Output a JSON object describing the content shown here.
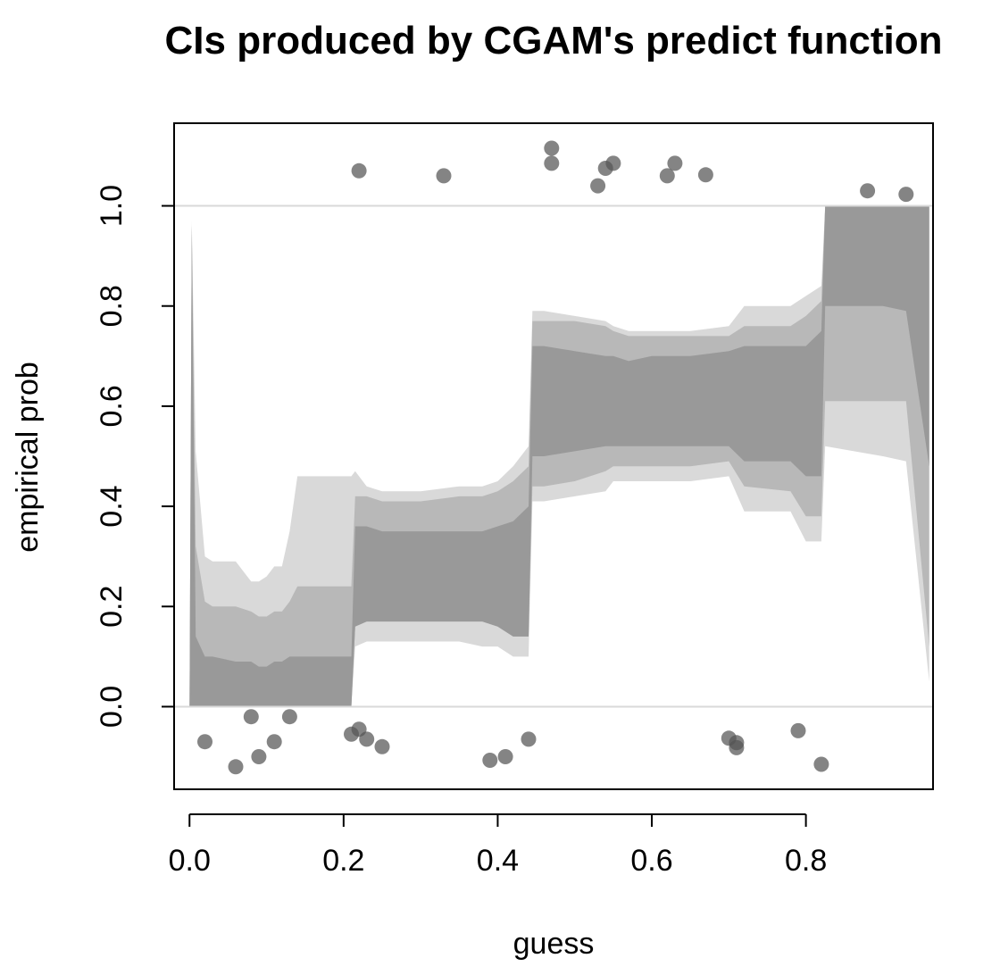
{
  "chart_data": {
    "type": "scatter",
    "title": "CIs produced by CGAM's predict function",
    "xlabel": "guess",
    "ylabel": "empirical prob",
    "xlim": [
      -0.02,
      0.965
    ],
    "ylim": [
      -0.165,
      1.165
    ],
    "xticks": [
      0.0,
      0.2,
      0.4,
      0.6,
      0.8
    ],
    "xtick_labels": [
      "0.0",
      "0.2",
      "0.4",
      "0.6",
      "0.8"
    ],
    "yticks": [
      0.0,
      0.2,
      0.4,
      0.6,
      0.8,
      1.0
    ],
    "ytick_labels": [
      "0.0",
      "0.2",
      "0.4",
      "0.6",
      "0.8",
      "1.0"
    ],
    "reference_lines": [
      0.0,
      1.0
    ],
    "grid": false,
    "colors": {
      "band_outer": "#d9d9d9",
      "band_middle": "#b8b8b8",
      "band_inner": "#999999",
      "points": "#555555",
      "reference": "#d9d9d9"
    },
    "bands": {
      "x": [
        0.0,
        0.003,
        0.008,
        0.02,
        0.03,
        0.06,
        0.08,
        0.09,
        0.1,
        0.11,
        0.12,
        0.13,
        0.14,
        0.21,
        0.215,
        0.23,
        0.25,
        0.3,
        0.35,
        0.38,
        0.4,
        0.42,
        0.44,
        0.445,
        0.46,
        0.5,
        0.54,
        0.55,
        0.57,
        0.6,
        0.65,
        0.7,
        0.72,
        0.78,
        0.8,
        0.82,
        0.825,
        0.9,
        0.93,
        0.96
      ],
      "outer_low": [
        0.0,
        0.0,
        0.0,
        0.0,
        0.0,
        0.0,
        0.0,
        0.0,
        0.0,
        0.0,
        0.0,
        0.0,
        0.0,
        0.0,
        0.12,
        0.13,
        0.13,
        0.13,
        0.13,
        0.12,
        0.12,
        0.1,
        0.1,
        0.41,
        0.41,
        0.42,
        0.43,
        0.45,
        0.45,
        0.45,
        0.45,
        0.46,
        0.39,
        0.39,
        0.33,
        0.33,
        0.52,
        0.5,
        0.49,
        0.05
      ],
      "middle_low": [
        0.0,
        0.0,
        0.0,
        0.0,
        0.0,
        0.0,
        0.0,
        0.0,
        0.0,
        0.0,
        0.0,
        0.0,
        0.0,
        0.0,
        0.16,
        0.17,
        0.17,
        0.17,
        0.17,
        0.17,
        0.16,
        0.14,
        0.14,
        0.44,
        0.44,
        0.45,
        0.47,
        0.48,
        0.48,
        0.48,
        0.48,
        0.49,
        0.44,
        0.43,
        0.38,
        0.38,
        0.61,
        0.61,
        0.61,
        0.12
      ],
      "inner_low": [
        0.0,
        0.0,
        0.0,
        0.0,
        0.0,
        0.0,
        0.0,
        0.0,
        0.0,
        0.0,
        0.0,
        0.0,
        0.0,
        0.0,
        0.16,
        0.17,
        0.17,
        0.17,
        0.17,
        0.17,
        0.16,
        0.14,
        0.14,
        0.5,
        0.5,
        0.51,
        0.52,
        0.52,
        0.52,
        0.52,
        0.52,
        0.52,
        0.49,
        0.49,
        0.46,
        0.46,
        0.8,
        0.8,
        0.79,
        0.48
      ],
      "inner_high": [
        0.0,
        0.96,
        0.14,
        0.1,
        0.1,
        0.09,
        0.09,
        0.08,
        0.08,
        0.09,
        0.09,
        0.1,
        0.1,
        0.1,
        0.36,
        0.36,
        0.35,
        0.35,
        0.35,
        0.35,
        0.36,
        0.37,
        0.4,
        0.72,
        0.72,
        0.71,
        0.7,
        0.7,
        0.69,
        0.7,
        0.7,
        0.71,
        0.72,
        0.72,
        0.72,
        0.75,
        1.0,
        1.0,
        1.0,
        1.0
      ],
      "middle_high": [
        0.0,
        0.96,
        0.32,
        0.21,
        0.2,
        0.2,
        0.19,
        0.18,
        0.18,
        0.19,
        0.19,
        0.21,
        0.24,
        0.24,
        0.42,
        0.42,
        0.41,
        0.41,
        0.42,
        0.42,
        0.43,
        0.45,
        0.48,
        0.77,
        0.77,
        0.77,
        0.76,
        0.75,
        0.74,
        0.74,
        0.74,
        0.74,
        0.76,
        0.76,
        0.78,
        0.81,
        1.0,
        1.0,
        1.0,
        1.0
      ],
      "outer_high": [
        0.0,
        0.97,
        0.51,
        0.3,
        0.29,
        0.29,
        0.25,
        0.25,
        0.26,
        0.28,
        0.28,
        0.35,
        0.46,
        0.46,
        0.47,
        0.44,
        0.43,
        0.43,
        0.44,
        0.44,
        0.45,
        0.48,
        0.52,
        0.79,
        0.79,
        0.78,
        0.77,
        0.76,
        0.75,
        0.75,
        0.75,
        0.76,
        0.8,
        0.8,
        0.82,
        0.84,
        1.0,
        1.0,
        1.0,
        1.0
      ]
    },
    "points": [
      {
        "x": 0.02,
        "y": -0.07
      },
      {
        "x": 0.06,
        "y": -0.12
      },
      {
        "x": 0.08,
        "y": -0.02
      },
      {
        "x": 0.09,
        "y": -0.1
      },
      {
        "x": 0.11,
        "y": -0.07
      },
      {
        "x": 0.13,
        "y": -0.02
      },
      {
        "x": 0.21,
        "y": -0.055
      },
      {
        "x": 0.22,
        "y": -0.045
      },
      {
        "x": 0.23,
        "y": -0.065
      },
      {
        "x": 0.25,
        "y": -0.08
      },
      {
        "x": 0.39,
        "y": -0.107
      },
      {
        "x": 0.41,
        "y": -0.1
      },
      {
        "x": 0.44,
        "y": -0.065
      },
      {
        "x": 0.7,
        "y": -0.063
      },
      {
        "x": 0.71,
        "y": -0.082
      },
      {
        "x": 0.71,
        "y": -0.072
      },
      {
        "x": 0.79,
        "y": -0.048
      },
      {
        "x": 0.82,
        "y": -0.115
      },
      {
        "x": 0.22,
        "y": 1.07
      },
      {
        "x": 0.33,
        "y": 1.06
      },
      {
        "x": 0.47,
        "y": 1.115
      },
      {
        "x": 0.47,
        "y": 1.085
      },
      {
        "x": 0.53,
        "y": 1.04
      },
      {
        "x": 0.54,
        "y": 1.075
      },
      {
        "x": 0.55,
        "y": 1.085
      },
      {
        "x": 0.62,
        "y": 1.06
      },
      {
        "x": 0.63,
        "y": 1.085
      },
      {
        "x": 0.67,
        "y": 1.062
      },
      {
        "x": 0.88,
        "y": 1.03
      },
      {
        "x": 0.93,
        "y": 1.023
      }
    ]
  }
}
